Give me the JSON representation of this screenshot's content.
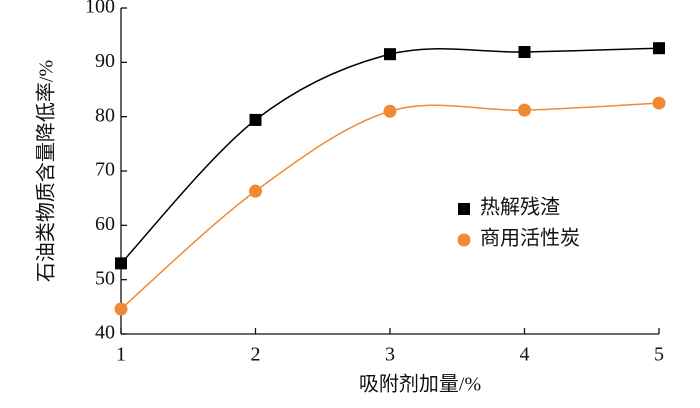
{
  "chart_data": {
    "type": "line",
    "x_label": "吸附剂加量/%",
    "y_label": "石油类物质含量降低率/%",
    "x": [
      1,
      2,
      3,
      4,
      5
    ],
    "series": [
      {
        "name": "热解残渣",
        "color": "#000000",
        "marker": "square",
        "values": [
          53.0,
          79.4,
          91.5,
          91.9,
          92.6
        ]
      },
      {
        "name": "商用活性炭",
        "color": "#f08a32",
        "marker": "circle",
        "values": [
          44.6,
          66.3,
          81.0,
          81.2,
          82.5
        ]
      }
    ],
    "xlim": [
      1,
      5
    ],
    "xticks": [
      1,
      2,
      3,
      4,
      5
    ],
    "ylim": [
      40,
      100
    ],
    "yticks": [
      40,
      50,
      60,
      70,
      80,
      90,
      100
    ],
    "smooth": true,
    "legend": "center right"
  }
}
